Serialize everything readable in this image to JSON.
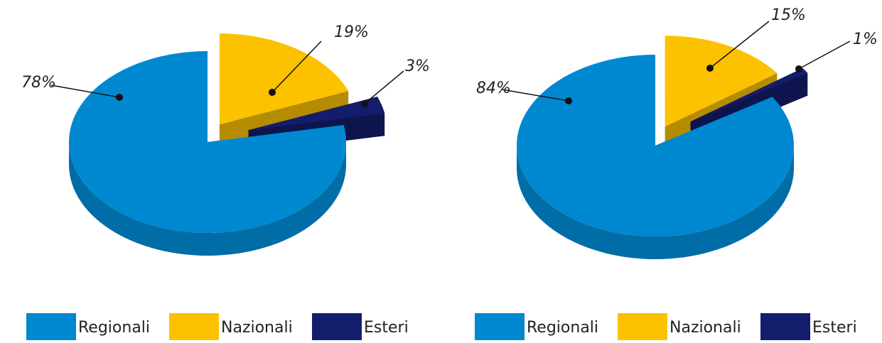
{
  "chart_data": [
    {
      "type": "pie",
      "categories": [
        "Regionali",
        "Nazionali",
        "Esteri"
      ],
      "values": [
        78,
        19,
        3
      ],
      "value_labels": [
        "78%",
        "19%",
        "3%"
      ],
      "colors": [
        "#0088d1",
        "#fcc200",
        "#141c6c"
      ]
    },
    {
      "type": "pie",
      "categories": [
        "Regionali",
        "Nazionali",
        "Esteri"
      ],
      "values": [
        84,
        15,
        1
      ],
      "value_labels": [
        "84%",
        "15%",
        "1%"
      ],
      "colors": [
        "#0088d1",
        "#fcc200",
        "#141c6c"
      ]
    }
  ]
}
